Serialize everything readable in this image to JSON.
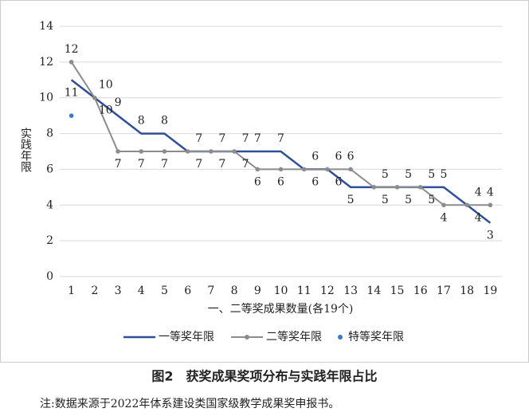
{
  "chart_data": {
    "type": "line",
    "x_label": "一、二等奖成果数量(各19个)",
    "y_label": "实践年限",
    "categories": [
      "1",
      "2",
      "3",
      "4",
      "5",
      "6",
      "7",
      "8",
      "9",
      "10",
      "11",
      "12",
      "13",
      "14",
      "15",
      "16",
      "17",
      "18",
      "19"
    ],
    "series": [
      {
        "name": "一等奖年限",
        "color": "#2f4f9a",
        "marker": false,
        "values": [
          11,
          10,
          9,
          8,
          8,
          7,
          7,
          7,
          7,
          7,
          6,
          6,
          5,
          5,
          5,
          5,
          5,
          4,
          3
        ]
      },
      {
        "name": "二等奖年限",
        "color": "#8c8c8c",
        "marker": true,
        "values": [
          12,
          10,
          7,
          7,
          7,
          7,
          7,
          7,
          6,
          6,
          6,
          6,
          6,
          5,
          5,
          5,
          4,
          4,
          4
        ]
      },
      {
        "name": "特等奖年限",
        "color": "#3b7bbf",
        "marker": true,
        "values": [
          9,
          null,
          null,
          null,
          null,
          null,
          null,
          null,
          null,
          null,
          null,
          null,
          null,
          null,
          null,
          null,
          null,
          null,
          null
        ]
      }
    ],
    "ylim": [
      0,
      14
    ],
    "yticks": [
      0,
      2,
      4,
      6,
      8,
      10,
      12,
      14
    ],
    "grid": true,
    "caption": "图2　获奖成果奖项分布与实践年限占比",
    "note": "注:数据来源于2022年体系建设类国家级教学成果奖申报书。"
  }
}
